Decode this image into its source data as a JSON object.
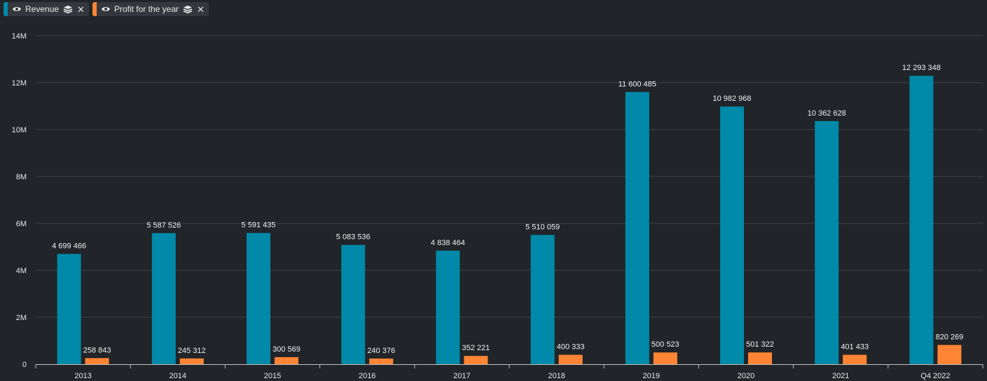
{
  "legend": [
    {
      "label": "Revenue",
      "color": "#0089a8",
      "eye_icon": "eye-icon",
      "stack_icon": "stack-icon",
      "close_icon": "close-icon"
    },
    {
      "label": "Profit for the year",
      "color": "#ff8534",
      "eye_icon": "eye-icon",
      "stack_icon": "stack-icon",
      "close_icon": "close-icon"
    }
  ],
  "chart_data": {
    "type": "bar",
    "categories": [
      "2013",
      "2014",
      "2015",
      "2016",
      "2017",
      "2018",
      "2019",
      "2020",
      "2021",
      "Q4 2022"
    ],
    "series": [
      {
        "name": "Revenue",
        "color": "#0089a8",
        "values": [
          4699466,
          5587526,
          5591435,
          5083536,
          4838464,
          5510059,
          11600485,
          10982968,
          10362628,
          12293348
        ],
        "labels": [
          "4 699 466",
          "5 587 526",
          "5 591 435",
          "5 083 536",
          "4 838 464",
          "5 510 059",
          "11 600 485",
          "10 982 968",
          "10 362 628",
          "12 293 348"
        ]
      },
      {
        "name": "Profit for the year",
        "color": "#ff8534",
        "values": [
          258843,
          245312,
          300569,
          240376,
          352221,
          400333,
          500523,
          501322,
          401433,
          820269
        ],
        "labels": [
          "258 843",
          "245 312",
          "300 569",
          "240 376",
          "352 221",
          "400 333",
          "500 523",
          "501 322",
          "401 433",
          "820 269"
        ]
      }
    ],
    "yticks": [
      0,
      2000000,
      4000000,
      6000000,
      8000000,
      10000000,
      12000000,
      14000000
    ],
    "ytick_labels": [
      "0",
      "2M",
      "4M",
      "6M",
      "8M",
      "10M",
      "12M",
      "14M"
    ],
    "ylim": [
      0,
      14000000
    ],
    "grid": true,
    "legend_position": "top-left"
  }
}
